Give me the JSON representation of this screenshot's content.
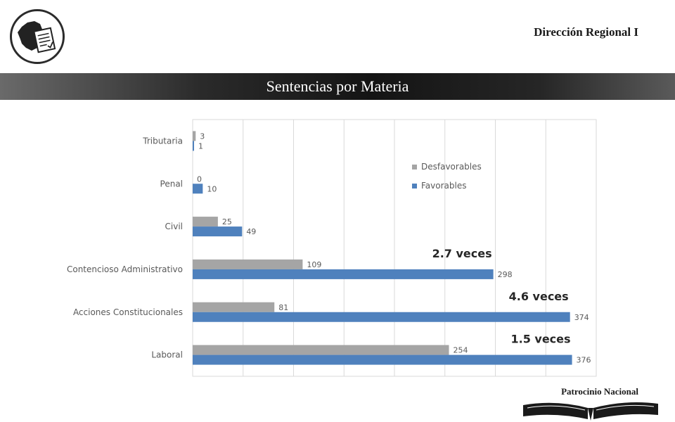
{
  "header": {
    "region_title": "Dirección Regional I",
    "slide_title": "Sentencias por Materia"
  },
  "footer": {
    "sponsor_label": "Patrocinio Nacional"
  },
  "chart_data": {
    "type": "bar",
    "orientation": "horizontal",
    "categories": [
      "Tributaria",
      "Penal",
      "Civil",
      "Contencioso Administrativo",
      "Acciones Constitucionales",
      "Laboral"
    ],
    "series": [
      {
        "name": "Desfavorables",
        "values": [
          3,
          0,
          25,
          109,
          81,
          254
        ],
        "color": "#a5a5a5"
      },
      {
        "name": "Favorables",
        "values": [
          1,
          10,
          49,
          298,
          374,
          376
        ],
        "color": "#4f81bd"
      }
    ],
    "xlim": [
      0,
      400
    ],
    "grid": true,
    "legend_position": "top-right",
    "annotations": [
      {
        "category": "Contencioso Administrativo",
        "text": "2.7 veces"
      },
      {
        "category": "Acciones Constitucionales",
        "text": "4.6 veces"
      },
      {
        "category": "Laboral",
        "text": "1.5 veces"
      }
    ]
  }
}
